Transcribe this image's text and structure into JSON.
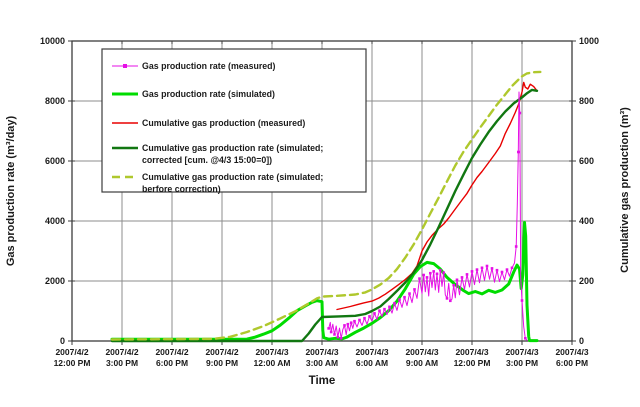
{
  "colors": {
    "background": "#FFFFFF",
    "grid": "#8C8C8C",
    "border": "#3C3C3C",
    "text": "#1A1A1A",
    "rate_measured": "#E60FE6",
    "rate_simulated": "#00DC00",
    "cum_measured": "#E80000",
    "cum_sim_corrected": "#117711",
    "cum_sim_before": "#AFC82D"
  },
  "chart_data": {
    "type": "line",
    "title": "",
    "xlabel": "Time",
    "ylabel_left": "Gas production rate (m³/day)",
    "ylabel_right": "Cumulative gas production (m³)",
    "ylim_left": [
      0,
      10000
    ],
    "ylim_right": [
      0,
      1000
    ],
    "yticks_left": [
      "0",
      "2000",
      "4000",
      "6000",
      "8000",
      "10000"
    ],
    "yticks_right": [
      "0",
      "200",
      "400",
      "600",
      "800",
      "1000"
    ],
    "x_hours_range": [
      0,
      30
    ],
    "grid": true,
    "x_ticks": [
      {
        "hour": 0,
        "date": "2007/4/2",
        "time": "12:00 PM"
      },
      {
        "hour": 3,
        "date": "2007/4/2",
        "time": "3:00 PM"
      },
      {
        "hour": 6,
        "date": "2007/4/2",
        "time": "6:00 PM"
      },
      {
        "hour": 9,
        "date": "2007/4/2",
        "time": "9:00 PM"
      },
      {
        "hour": 12,
        "date": "2007/4/3",
        "time": "12:00 AM"
      },
      {
        "hour": 15,
        "date": "2007/4/3",
        "time": "3:00 AM"
      },
      {
        "hour": 18,
        "date": "2007/4/3",
        "time": "6:00 AM"
      },
      {
        "hour": 21,
        "date": "2007/4/3",
        "time": "9:00 AM"
      },
      {
        "hour": 24,
        "date": "2007/4/3",
        "time": "12:00 PM"
      },
      {
        "hour": 27,
        "date": "2007/4/3",
        "time": "3:00 PM"
      },
      {
        "hour": 30,
        "date": "2007/4/3",
        "time": "6:00 PM"
      }
    ],
    "legend": {
      "position": "top-left-inside",
      "entries": [
        {
          "id": "rate-measured",
          "color": "#E60FE6",
          "style": "solid-marker",
          "width": 1,
          "lines": [
            "Gas production rate (measured)"
          ]
        },
        {
          "id": "rate-simulated",
          "color": "#00DC00",
          "style": "solid",
          "width": 3,
          "lines": [
            "Gas production rate (simulated)"
          ]
        },
        {
          "id": "cum-measured",
          "color": "#E80000",
          "style": "solid",
          "width": 1.4,
          "lines": [
            "Cumulative gas production (measured)"
          ]
        },
        {
          "id": "cum-sim-corrected",
          "color": "#117711",
          "style": "solid",
          "width": 2.4,
          "lines": [
            "Cumulative gas production rate (simulated;",
            "corrected [cum. @4/3 15:00=0])"
          ]
        },
        {
          "id": "cum-sim-before",
          "color": "#AFC82D",
          "style": "dashed",
          "width": 2.4,
          "lines": [
            "Cumulative gas production rate (simulated;",
            "berfore correction)"
          ]
        }
      ]
    },
    "series": [
      {
        "id": "cum-measured",
        "name": "Cumulative gas production (measured)",
        "axis": "right",
        "color": "#E80000",
        "width": 1.4,
        "points": [
          [
            15.9,
            105
          ],
          [
            16.3,
            110
          ],
          [
            16.7,
            115
          ],
          [
            17.1,
            121
          ],
          [
            17.5,
            127
          ],
          [
            18,
            133
          ],
          [
            18.4,
            143
          ],
          [
            18.8,
            156
          ],
          [
            19.2,
            172
          ],
          [
            19.6,
            188
          ],
          [
            20,
            205
          ],
          [
            20.4,
            225
          ],
          [
            20.7,
            250
          ],
          [
            21,
            300
          ],
          [
            21.3,
            330
          ],
          [
            21.6,
            352
          ],
          [
            22,
            375
          ],
          [
            22.3,
            390
          ],
          [
            22.6,
            410
          ],
          [
            23,
            440
          ],
          [
            23.4,
            470
          ],
          [
            23.7,
            492
          ],
          [
            24,
            520
          ],
          [
            24.3,
            545
          ],
          [
            24.6,
            565
          ],
          [
            25,
            595
          ],
          [
            25.4,
            625
          ],
          [
            25.7,
            650
          ],
          [
            26,
            692
          ],
          [
            26.3,
            725
          ],
          [
            26.6,
            762
          ],
          [
            26.8,
            790
          ],
          [
            27,
            830
          ],
          [
            27.1,
            862
          ],
          [
            27.2,
            846
          ],
          [
            27.35,
            840
          ],
          [
            27.5,
            856
          ],
          [
            27.7,
            848
          ],
          [
            27.9,
            834
          ]
        ]
      },
      {
        "id": "rate-simulated",
        "name": "Gas production rate (simulated)",
        "axis": "left",
        "color": "#00DC00",
        "width": 3,
        "points": [
          [
            2.4,
            60
          ],
          [
            10.5,
            65
          ],
          [
            11,
            130
          ],
          [
            11.5,
            230
          ],
          [
            12,
            340
          ],
          [
            12.5,
            530
          ],
          [
            13,
            760
          ],
          [
            13.5,
            1010
          ],
          [
            14,
            1170
          ],
          [
            14.4,
            1290
          ],
          [
            14.7,
            1345
          ],
          [
            15.0,
            1310
          ],
          [
            15.05,
            350
          ],
          [
            15.1,
            110
          ],
          [
            15.4,
            60
          ],
          [
            15.8,
            90
          ],
          [
            16.2,
            70
          ],
          [
            16.5,
            130
          ],
          [
            17,
            290
          ],
          [
            17.5,
            430
          ],
          [
            18,
            590
          ],
          [
            18.5,
            780
          ],
          [
            19,
            1010
          ],
          [
            19.5,
            1330
          ],
          [
            20,
            1740
          ],
          [
            20.5,
            2230
          ],
          [
            20.9,
            2480
          ],
          [
            21.3,
            2620
          ],
          [
            21.7,
            2580
          ],
          [
            22.1,
            2400
          ],
          [
            22.5,
            2120
          ],
          [
            23,
            1880
          ],
          [
            23.5,
            1680
          ],
          [
            23.8,
            1580
          ],
          [
            24.2,
            1650
          ],
          [
            24.6,
            1570
          ],
          [
            25,
            1690
          ],
          [
            25.4,
            1620
          ],
          [
            25.8,
            1700
          ],
          [
            26.2,
            1900
          ],
          [
            26.5,
            2300
          ],
          [
            26.7,
            2530
          ],
          [
            26.85,
            2400
          ],
          [
            26.95,
            1750
          ],
          [
            27.05,
            2200
          ],
          [
            27.15,
            3950
          ],
          [
            27.22,
            3500
          ],
          [
            27.3,
            1200
          ],
          [
            27.4,
            150
          ],
          [
            27.45,
            15
          ],
          [
            27.9,
            15
          ]
        ]
      },
      {
        "id": "cum-sim-corrected",
        "name": "Cumulative gas production rate (simulated; corrected [cum. @4/3 15:00=0])",
        "axis": "right",
        "color": "#117711",
        "width": 2.4,
        "points": [
          [
            2.4,
            0
          ],
          [
            13.8,
            0
          ],
          [
            14.2,
            25
          ],
          [
            14.6,
            55
          ],
          [
            15.0,
            80
          ],
          [
            16.0,
            82
          ],
          [
            17.0,
            84
          ],
          [
            17.6,
            90
          ],
          [
            18,
            100
          ],
          [
            18.5,
            115
          ],
          [
            19,
            140
          ],
          [
            19.5,
            167
          ],
          [
            20,
            195
          ],
          [
            20.5,
            228
          ],
          [
            21,
            270
          ],
          [
            21.5,
            322
          ],
          [
            22,
            380
          ],
          [
            22.5,
            440
          ],
          [
            23,
            500
          ],
          [
            23.5,
            556
          ],
          [
            24,
            610
          ],
          [
            24.5,
            655
          ],
          [
            25,
            697
          ],
          [
            25.5,
            733
          ],
          [
            26,
            765
          ],
          [
            26.5,
            792
          ],
          [
            27,
            812
          ],
          [
            27.3,
            826
          ],
          [
            27.6,
            837
          ],
          [
            27.9,
            834
          ]
        ]
      },
      {
        "id": "cum-sim-before",
        "name": "Cumulative gas production rate (simulated; berfore correction)",
        "axis": "right",
        "color": "#AFC82D",
        "width": 2.4,
        "dash": "8,5",
        "points": [
          [
            2.4,
            5
          ],
          [
            8.5,
            7
          ],
          [
            9.5,
            14
          ],
          [
            10.5,
            30
          ],
          [
            11.5,
            50
          ],
          [
            12.5,
            75
          ],
          [
            13.5,
            102
          ],
          [
            14.2,
            125
          ],
          [
            14.7,
            142
          ],
          [
            15,
            148
          ],
          [
            16,
            151
          ],
          [
            17,
            155
          ],
          [
            17.6,
            162
          ],
          [
            18,
            172
          ],
          [
            18.5,
            188
          ],
          [
            19,
            210
          ],
          [
            19.5,
            240
          ],
          [
            20,
            278
          ],
          [
            20.5,
            322
          ],
          [
            21,
            372
          ],
          [
            21.5,
            425
          ],
          [
            22,
            478
          ],
          [
            22.5,
            532
          ],
          [
            23,
            585
          ],
          [
            23.5,
            632
          ],
          [
            24,
            672
          ],
          [
            24.5,
            712
          ],
          [
            25,
            750
          ],
          [
            25.5,
            788
          ],
          [
            26,
            822
          ],
          [
            26.4,
            850
          ],
          [
            26.8,
            872
          ],
          [
            27,
            882
          ],
          [
            27.3,
            892
          ],
          [
            27.7,
            896
          ],
          [
            28.1,
            897
          ]
        ]
      },
      {
        "id": "rate-measured",
        "name": "Gas production rate (measured)",
        "axis": "left",
        "color": "#E60FE6",
        "width": 1,
        "marker": "square",
        "points": [
          [
            15.4,
            420
          ],
          [
            15.5,
            620
          ],
          [
            15.55,
            300
          ],
          [
            15.65,
            560
          ],
          [
            15.75,
            220
          ],
          [
            15.85,
            500
          ],
          [
            15.95,
            130
          ],
          [
            16.05,
            430
          ],
          [
            16.15,
            90
          ],
          [
            16.25,
            380
          ],
          [
            16.35,
            520
          ],
          [
            16.45,
            210
          ],
          [
            16.55,
            560
          ],
          [
            16.65,
            340
          ],
          [
            16.75,
            610
          ],
          [
            16.85,
            420
          ],
          [
            16.95,
            660
          ],
          [
            17.1,
            470
          ],
          [
            17.25,
            700
          ],
          [
            17.4,
            520
          ],
          [
            17.55,
            760
          ],
          [
            17.7,
            560
          ],
          [
            17.85,
            820
          ],
          [
            18.0,
            660
          ],
          [
            18.15,
            920
          ],
          [
            18.3,
            720
          ],
          [
            18.45,
            1010
          ],
          [
            18.6,
            820
          ],
          [
            18.75,
            1060
          ],
          [
            18.9,
            880
          ],
          [
            19.05,
            1140
          ],
          [
            19.2,
            930
          ],
          [
            19.35,
            1260
          ],
          [
            19.5,
            1020
          ],
          [
            19.65,
            1380
          ],
          [
            19.8,
            1120
          ],
          [
            19.95,
            1460
          ],
          [
            20.1,
            1180
          ],
          [
            20.25,
            1580
          ],
          [
            20.4,
            1280
          ],
          [
            20.55,
            1720
          ],
          [
            20.7,
            1420
          ],
          [
            20.85,
            2080
          ],
          [
            21.0,
            1580
          ],
          [
            21.1,
            2200
          ],
          [
            21.2,
            1640
          ],
          [
            21.3,
            2120
          ],
          [
            21.4,
            1500
          ],
          [
            21.5,
            2260
          ],
          [
            21.6,
            1780
          ],
          [
            21.7,
            2320
          ],
          [
            21.8,
            1700
          ],
          [
            21.9,
            2240
          ],
          [
            22.0,
            1620
          ],
          [
            22.1,
            2360
          ],
          [
            22.2,
            1820
          ],
          [
            22.3,
            2280
          ],
          [
            22.4,
            1540
          ],
          [
            22.5,
            1420
          ],
          [
            22.6,
            1920
          ],
          [
            22.7,
            1340
          ],
          [
            22.8,
            1400
          ],
          [
            22.9,
            1860
          ],
          [
            23.0,
            1440
          ],
          [
            23.1,
            2040
          ],
          [
            23.25,
            1540
          ],
          [
            23.4,
            2120
          ],
          [
            23.55,
            1720
          ],
          [
            23.7,
            2220
          ],
          [
            23.85,
            1800
          ],
          [
            24.0,
            2320
          ],
          [
            24.15,
            1880
          ],
          [
            24.3,
            2380
          ],
          [
            24.45,
            1940
          ],
          [
            24.6,
            2440
          ],
          [
            24.75,
            2020
          ],
          [
            24.9,
            2500
          ],
          [
            25.05,
            2060
          ],
          [
            25.2,
            2420
          ],
          [
            25.35,
            1960
          ],
          [
            25.5,
            2360
          ],
          [
            25.65,
            1980
          ],
          [
            25.8,
            2300
          ],
          [
            25.95,
            2040
          ],
          [
            26.1,
            2380
          ],
          [
            26.25,
            2160
          ],
          [
            26.4,
            2440
          ],
          [
            26.55,
            2600
          ],
          [
            26.65,
            3150
          ],
          [
            26.72,
            4550
          ],
          [
            26.78,
            6300
          ],
          [
            26.82,
            8300
          ],
          [
            26.87,
            7600
          ],
          [
            26.92,
            2100
          ],
          [
            27.0,
            1350
          ],
          [
            27.1,
            480
          ],
          [
            27.2,
            90
          ],
          [
            27.3,
            25
          ]
        ]
      }
    ]
  }
}
